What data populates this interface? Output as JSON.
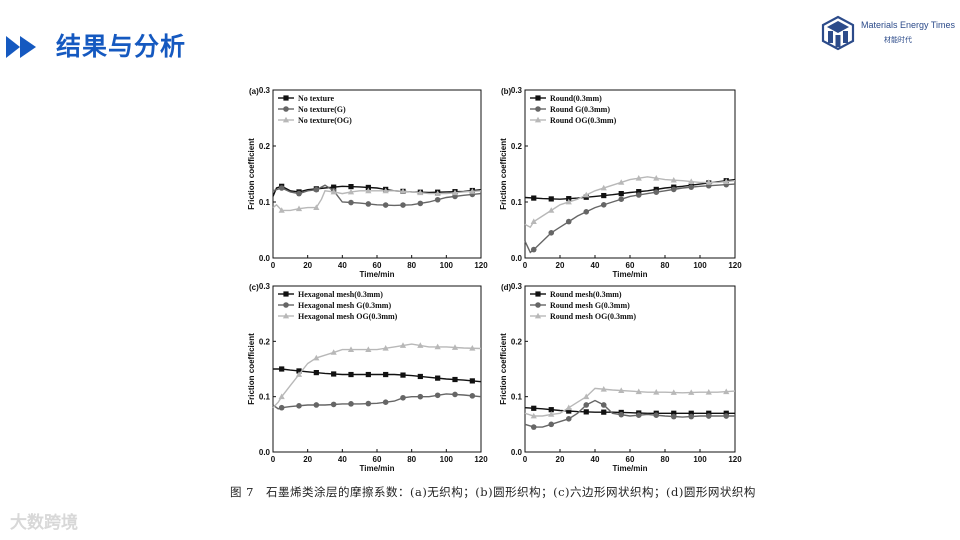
{
  "header": {
    "title": "结果与分析",
    "brand_name": "Materials Energy Times",
    "brand_sub": "材能时代"
  },
  "caption": "图 7　石墨烯类涂层的摩擦系数：(a)无织构；(b)圆形织构；(c)六边形网状织构；(d)圆形网状织构",
  "watermark": "大数跨境",
  "colors": {
    "title": "#1559c0",
    "s1": "#111111",
    "s2": "#666666",
    "s3": "#b8b8b8"
  },
  "chart_data": [
    {
      "panel": "(a)",
      "type": "line",
      "xlabel": "Time/min",
      "ylabel": "Friction coefficient",
      "xlim": [
        0,
        120
      ],
      "ylim": [
        0,
        0.3
      ],
      "xticks": [
        0,
        20,
        40,
        60,
        80,
        100,
        120
      ],
      "yticks": [
        0,
        0.1,
        0.2,
        0.3
      ],
      "legend_position": "top-left",
      "series": [
        {
          "name": "No texture",
          "marker": "square",
          "color": "#111111",
          "x": [
            0,
            2,
            5,
            10,
            15,
            20,
            30,
            40,
            50,
            60,
            70,
            80,
            90,
            100,
            110,
            120
          ],
          "y": [
            0.11,
            0.125,
            0.128,
            0.12,
            0.118,
            0.122,
            0.125,
            0.128,
            0.127,
            0.125,
            0.12,
            0.118,
            0.117,
            0.118,
            0.119,
            0.122
          ]
        },
        {
          "name": "No texture(G)",
          "marker": "circle",
          "color": "#666666",
          "x": [
            0,
            5,
            10,
            15,
            20,
            25,
            30,
            35,
            40,
            50,
            60,
            70,
            80,
            90,
            100,
            110,
            120
          ],
          "y": [
            0.12,
            0.125,
            0.118,
            0.115,
            0.12,
            0.122,
            0.13,
            0.12,
            0.1,
            0.098,
            0.095,
            0.094,
            0.095,
            0.1,
            0.108,
            0.112,
            0.115
          ]
        },
        {
          "name": "No texture(OG)",
          "marker": "triangle",
          "color": "#b8b8b8",
          "x": [
            0,
            2,
            5,
            10,
            15,
            20,
            25,
            28,
            30,
            35,
            40,
            45,
            50,
            60,
            70,
            80,
            90,
            100,
            110,
            120
          ],
          "y": [
            0.09,
            0.095,
            0.085,
            0.085,
            0.088,
            0.09,
            0.09,
            0.105,
            0.12,
            0.118,
            0.115,
            0.118,
            0.12,
            0.12,
            0.12,
            0.118,
            0.115,
            0.115,
            0.118,
            0.12
          ]
        }
      ]
    },
    {
      "panel": "(b)",
      "type": "line",
      "xlabel": "Time/min",
      "ylabel": "Friction coefficient",
      "xlim": [
        0,
        120
      ],
      "ylim": [
        0,
        0.3
      ],
      "xticks": [
        0,
        20,
        40,
        60,
        80,
        100,
        120
      ],
      "yticks": [
        0,
        0.1,
        0.2,
        0.3
      ],
      "legend_position": "top-left",
      "series": [
        {
          "name": "Round(0.3mm)",
          "marker": "square",
          "color": "#111111",
          "x": [
            0,
            10,
            20,
            30,
            40,
            50,
            60,
            70,
            80,
            90,
            100,
            110,
            120
          ],
          "y": [
            0.108,
            0.106,
            0.105,
            0.107,
            0.11,
            0.113,
            0.117,
            0.12,
            0.125,
            0.128,
            0.132,
            0.136,
            0.14
          ]
        },
        {
          "name": "Round G(0.3mm)",
          "marker": "circle",
          "color": "#666666",
          "x": [
            0,
            3,
            5,
            10,
            15,
            20,
            25,
            30,
            40,
            50,
            60,
            70,
            80,
            90,
            100,
            110,
            120
          ],
          "y": [
            0.03,
            0.01,
            0.015,
            0.03,
            0.045,
            0.055,
            0.065,
            0.075,
            0.09,
            0.1,
            0.11,
            0.115,
            0.12,
            0.125,
            0.128,
            0.13,
            0.132
          ]
        },
        {
          "name": "Round OG(0.3mm)",
          "marker": "triangle",
          "color": "#b8b8b8",
          "x": [
            0,
            3,
            5,
            10,
            15,
            20,
            30,
            40,
            50,
            60,
            70,
            80,
            90,
            100,
            110,
            120
          ],
          "y": [
            0.06,
            0.055,
            0.065,
            0.075,
            0.085,
            0.095,
            0.105,
            0.12,
            0.13,
            0.14,
            0.145,
            0.14,
            0.138,
            0.135,
            0.135,
            0.138
          ]
        }
      ]
    },
    {
      "panel": "(c)",
      "type": "line",
      "xlabel": "Time/min",
      "ylabel": "Friction coefficient",
      "xlim": [
        0,
        120
      ],
      "ylim": [
        0,
        0.3
      ],
      "xticks": [
        0,
        20,
        40,
        60,
        80,
        100,
        120
      ],
      "yticks": [
        0,
        0.1,
        0.2,
        0.3
      ],
      "legend_position": "top-left",
      "series": [
        {
          "name": "Hexagonal mesh(0.3mm)",
          "marker": "square",
          "color": "#111111",
          "x": [
            0,
            5,
            10,
            20,
            30,
            40,
            50,
            60,
            70,
            80,
            90,
            100,
            110,
            120
          ],
          "y": [
            0.15,
            0.15,
            0.148,
            0.145,
            0.142,
            0.14,
            0.14,
            0.14,
            0.14,
            0.138,
            0.135,
            0.132,
            0.13,
            0.127
          ]
        },
        {
          "name": "Hexagonal mesh G(0.3mm)",
          "marker": "circle",
          "color": "#666666",
          "x": [
            0,
            3,
            5,
            10,
            20,
            30,
            40,
            50,
            60,
            70,
            75,
            80,
            90,
            100,
            110,
            120
          ],
          "y": [
            0.085,
            0.078,
            0.08,
            0.082,
            0.085,
            0.085,
            0.087,
            0.087,
            0.088,
            0.092,
            0.098,
            0.1,
            0.1,
            0.105,
            0.103,
            0.1
          ]
        },
        {
          "name": "Hexagonal mesh OG(0.3mm)",
          "marker": "triangle",
          "color": "#b8b8b8",
          "x": [
            0,
            3,
            5,
            10,
            15,
            20,
            25,
            30,
            35,
            40,
            50,
            60,
            70,
            80,
            90,
            100,
            110,
            120
          ],
          "y": [
            0.08,
            0.09,
            0.1,
            0.12,
            0.14,
            0.16,
            0.17,
            0.175,
            0.18,
            0.185,
            0.185,
            0.185,
            0.19,
            0.195,
            0.19,
            0.19,
            0.188,
            0.187
          ]
        }
      ]
    },
    {
      "panel": "(d)",
      "type": "line",
      "xlabel": "Time/min",
      "ylabel": "Friction coefficient",
      "xlim": [
        0,
        120
      ],
      "ylim": [
        0,
        0.3
      ],
      "xticks": [
        0,
        20,
        40,
        60,
        80,
        100,
        120
      ],
      "yticks": [
        0,
        0.1,
        0.2,
        0.3
      ],
      "legend_position": "top-left",
      "series": [
        {
          "name": "Round mesh(0.3mm)",
          "marker": "square",
          "color": "#111111",
          "x": [
            0,
            10,
            20,
            30,
            40,
            50,
            60,
            70,
            80,
            90,
            100,
            110,
            120
          ],
          "y": [
            0.08,
            0.078,
            0.075,
            0.073,
            0.072,
            0.072,
            0.071,
            0.07,
            0.07,
            0.07,
            0.07,
            0.07,
            0.07
          ]
        },
        {
          "name": "Round mesh G(0.3mm)",
          "marker": "circle",
          "color": "#666666",
          "x": [
            0,
            5,
            10,
            15,
            20,
            25,
            30,
            35,
            40,
            45,
            50,
            60,
            70,
            80,
            90,
            100,
            110,
            120
          ],
          "y": [
            0.05,
            0.045,
            0.045,
            0.05,
            0.055,
            0.06,
            0.07,
            0.085,
            0.093,
            0.085,
            0.07,
            0.065,
            0.068,
            0.065,
            0.063,
            0.065,
            0.065,
            0.065
          ]
        },
        {
          "name": "Round mesh OG(0.3mm)",
          "marker": "triangle",
          "color": "#b8b8b8",
          "x": [
            0,
            5,
            10,
            15,
            20,
            25,
            30,
            35,
            40,
            50,
            60,
            70,
            80,
            90,
            100,
            110,
            120
          ],
          "y": [
            0.07,
            0.065,
            0.065,
            0.068,
            0.07,
            0.08,
            0.09,
            0.1,
            0.115,
            0.112,
            0.11,
            0.108,
            0.108,
            0.107,
            0.108,
            0.108,
            0.11
          ]
        }
      ]
    }
  ]
}
